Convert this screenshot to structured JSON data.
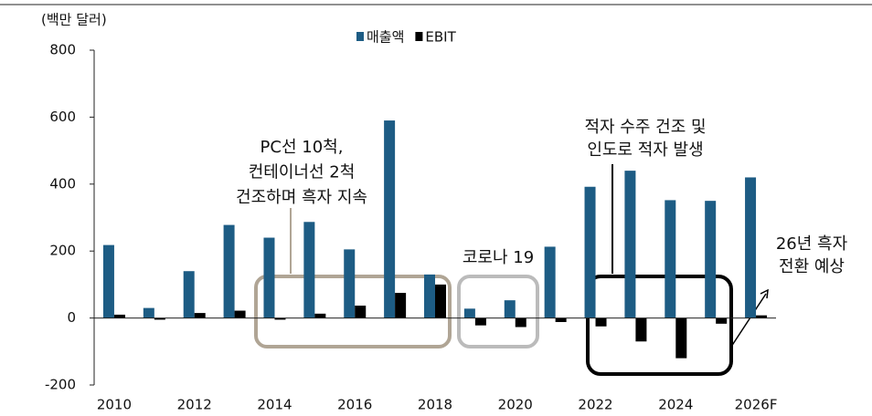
{
  "chart_data": {
    "type": "bar",
    "y_axis_label": "(백만 달러)",
    "categories": [
      "2010",
      null,
      "2012",
      null,
      "2014",
      null,
      "2016",
      null,
      "2018",
      null,
      "2020",
      null,
      "2022",
      null,
      "2024",
      null,
      "2026F"
    ],
    "series": [
      {
        "name": "매출액",
        "color": "#1d5c84",
        "values": [
          218,
          30,
          140,
          278,
          240,
          287,
          205,
          590,
          130,
          28,
          53,
          213,
          392,
          440,
          352,
          350,
          420
        ]
      },
      {
        "name": "EBIT",
        "color": "#000000",
        "values": [
          10,
          -5,
          15,
          22,
          -5,
          13,
          37,
          75,
          100,
          -22,
          -27,
          -12,
          -25,
          -70,
          -120,
          -17,
          8
        ]
      }
    ],
    "ylim": [
      -200,
      800
    ],
    "yticks": [
      -200,
      0,
      200,
      400,
      600,
      800
    ],
    "annotations": [
      {
        "lines": [
          "PC선 10척,",
          "컨테이너선 2척",
          "건조하며 흑자 지속"
        ]
      },
      {
        "lines": [
          "코로나 19"
        ]
      },
      {
        "lines": [
          "적자 수주 건조 및",
          "인도로 적자 발생"
        ]
      },
      {
        "lines": [
          "26년 흑자",
          "전환 예상"
        ]
      }
    ]
  }
}
